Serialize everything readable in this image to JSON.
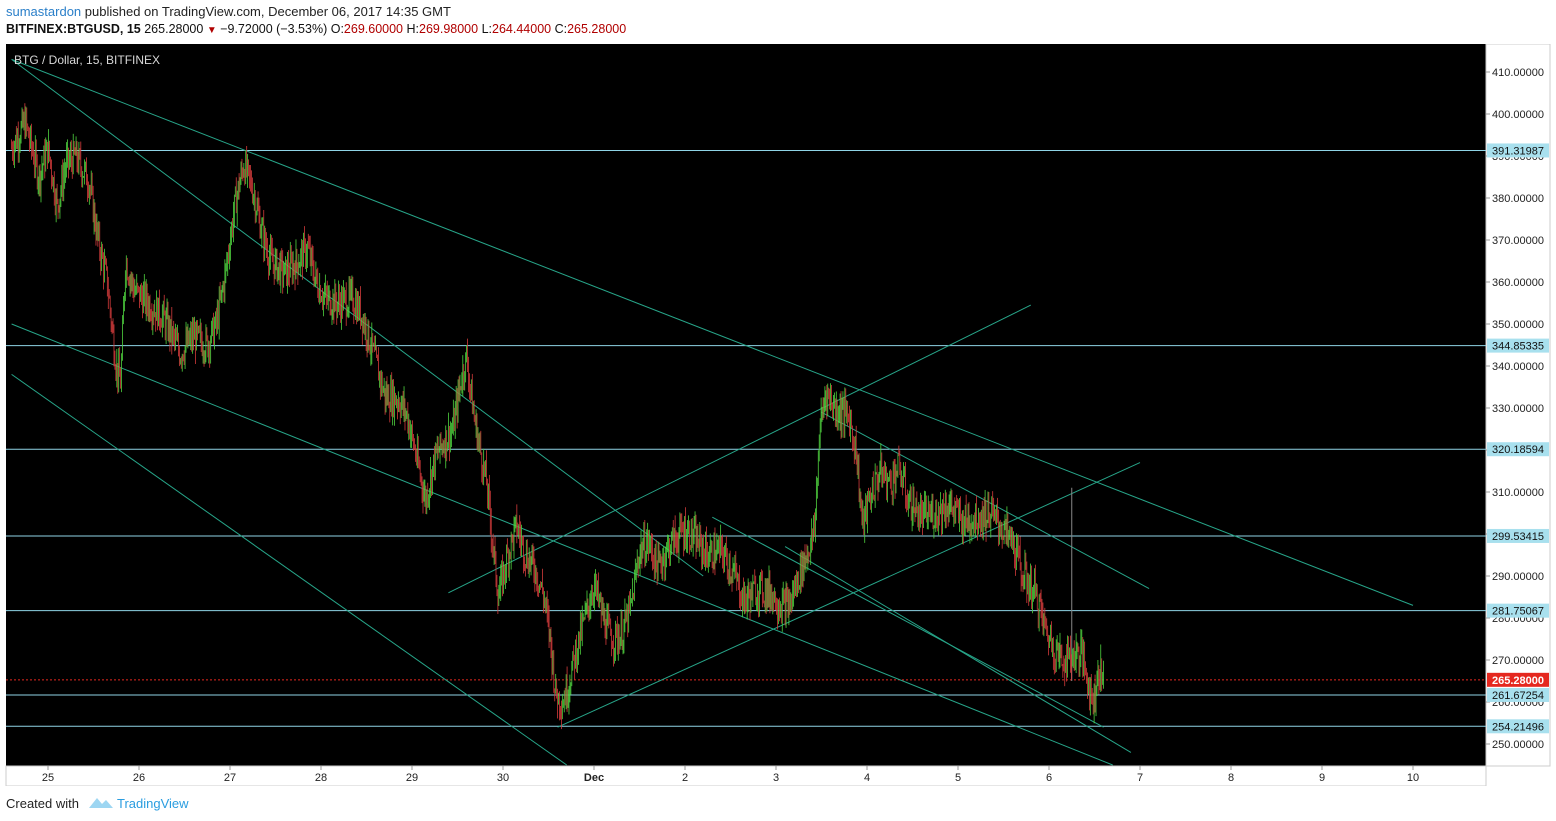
{
  "header": {
    "author": "sumastardon",
    "published_text": "published on TradingView.com, December 06, 2017 14:35 GMT",
    "symbol": "BITFINEX:BTGUSD, 15",
    "last": "265.28000",
    "change": "−9.72000 (−3.53%)",
    "open_label": "O:",
    "open": "269.60000",
    "high_label": "H:",
    "high": "269.98000",
    "low_label": "L:",
    "low": "264.44000",
    "close_label": "C:",
    "close": "265.28000"
  },
  "footer": {
    "created_with": "Created with",
    "brand": "TradingView"
  },
  "colors": {
    "background": "#000000",
    "up_candle": "#4fd33f",
    "down_candle": "#d23b3b",
    "trendline": "#27a589",
    "hline": "#8fd4e6",
    "label_bg": "#a8e0ee",
    "current_price": "#e5281f"
  },
  "chart_data": {
    "type": "candlestick",
    "title": "BTG / Dollar, 15, BITFINEX",
    "x_ticks": [
      "25",
      "26",
      "27",
      "28",
      "29",
      "30",
      "Dec",
      "2",
      "3",
      "4",
      "5",
      "6",
      "7",
      "8",
      "9",
      "10"
    ],
    "y_ticks": [
      "250.00000",
      "260.00000",
      "270.00000",
      "280.00000",
      "290.00000",
      "300.00000",
      "310.00000",
      "320.00000",
      "330.00000",
      "340.00000",
      "350.00000",
      "360.00000",
      "370.00000",
      "380.00000",
      "390.00000",
      "400.00000",
      "410.00000"
    ],
    "ylim": [
      245,
      414
    ],
    "xlim_days": [
      24.58,
      10.8
    ],
    "horizontal_levels": [
      "391.31987",
      "344.85335",
      "320.18594",
      "299.53415",
      "281.75067",
      "261.67254",
      "254.21496"
    ],
    "current_price": "265.28000",
    "price_path": [
      [
        24.6,
        392
      ],
      [
        24.75,
        398
      ],
      [
        24.9,
        385
      ],
      [
        25.0,
        392
      ],
      [
        25.1,
        378
      ],
      [
        25.2,
        388
      ],
      [
        25.3,
        390
      ],
      [
        25.45,
        384
      ],
      [
        25.55,
        370
      ],
      [
        25.65,
        360
      ],
      [
        25.75,
        340
      ],
      [
        25.8,
        336
      ],
      [
        25.85,
        365
      ],
      [
        25.95,
        358
      ],
      [
        26.1,
        355
      ],
      [
        26.25,
        352
      ],
      [
        26.35,
        348
      ],
      [
        26.45,
        343
      ],
      [
        26.6,
        347
      ],
      [
        26.75,
        345
      ],
      [
        26.85,
        350
      ],
      [
        26.95,
        362
      ],
      [
        27.05,
        378
      ],
      [
        27.15,
        388
      ],
      [
        27.25,
        382
      ],
      [
        27.35,
        372
      ],
      [
        27.45,
        365
      ],
      [
        27.6,
        362
      ],
      [
        27.75,
        365
      ],
      [
        27.85,
        368
      ],
      [
        27.95,
        360
      ],
      [
        28.05,
        356
      ],
      [
        28.2,
        355
      ],
      [
        28.35,
        356
      ],
      [
        28.45,
        352
      ],
      [
        28.55,
        345
      ],
      [
        28.7,
        333
      ],
      [
        28.85,
        332
      ],
      [
        28.95,
        328
      ],
      [
        29.05,
        318
      ],
      [
        29.15,
        308
      ],
      [
        29.25,
        318
      ],
      [
        29.35,
        322
      ],
      [
        29.45,
        325
      ],
      [
        29.55,
        338
      ],
      [
        29.6,
        342
      ],
      [
        29.68,
        328
      ],
      [
        29.75,
        320
      ],
      [
        29.82,
        312
      ],
      [
        29.9,
        295
      ],
      [
        29.95,
        285
      ],
      [
        30.05,
        295
      ],
      [
        30.15,
        302
      ],
      [
        30.25,
        295
      ],
      [
        30.35,
        292
      ],
      [
        30.45,
        285
      ],
      [
        30.52,
        275
      ],
      [
        30.58,
        262
      ],
      [
        30.65,
        260
      ],
      [
        30.72,
        264
      ],
      [
        30.8,
        272
      ],
      [
        30.9,
        280
      ],
      [
        31.0,
        288
      ],
      [
        31.1,
        280
      ],
      [
        31.2,
        275
      ],
      [
        31.3,
        276
      ],
      [
        31.4,
        282
      ],
      [
        31.5,
        296
      ],
      [
        31.6,
        298
      ],
      [
        31.7,
        292
      ],
      [
        31.85,
        298
      ],
      [
        32.0,
        301
      ],
      [
        32.1,
        299
      ],
      [
        32.25,
        295
      ],
      [
        32.4,
        296
      ],
      [
        32.55,
        290
      ],
      [
        32.65,
        284
      ],
      [
        32.8,
        287
      ],
      [
        32.95,
        286
      ],
      [
        33.05,
        283
      ],
      [
        33.15,
        283
      ],
      [
        33.25,
        290
      ],
      [
        33.35,
        296
      ],
      [
        33.42,
        300
      ],
      [
        33.48,
        325
      ],
      [
        33.55,
        334
      ],
      [
        33.65,
        330
      ],
      [
        33.8,
        328
      ],
      [
        33.88,
        320
      ],
      [
        33.95,
        302
      ],
      [
        34.05,
        310
      ],
      [
        34.15,
        315
      ],
      [
        34.25,
        312
      ],
      [
        34.35,
        316
      ],
      [
        34.45,
        308
      ],
      [
        34.6,
        304
      ],
      [
        34.75,
        305
      ],
      [
        34.9,
        307
      ],
      [
        35.05,
        303
      ],
      [
        35.2,
        304
      ],
      [
        35.35,
        305
      ],
      [
        35.5,
        301
      ],
      [
        35.6,
        298
      ],
      [
        35.72,
        290
      ],
      [
        35.85,
        286
      ],
      [
        35.95,
        278
      ],
      [
        36.05,
        273
      ],
      [
        36.15,
        270
      ],
      [
        36.25,
        271
      ],
      [
        36.35,
        272
      ],
      [
        36.42,
        266
      ],
      [
        36.48,
        260
      ],
      [
        36.55,
        268
      ],
      [
        36.6,
        265.28
      ]
    ]
  }
}
